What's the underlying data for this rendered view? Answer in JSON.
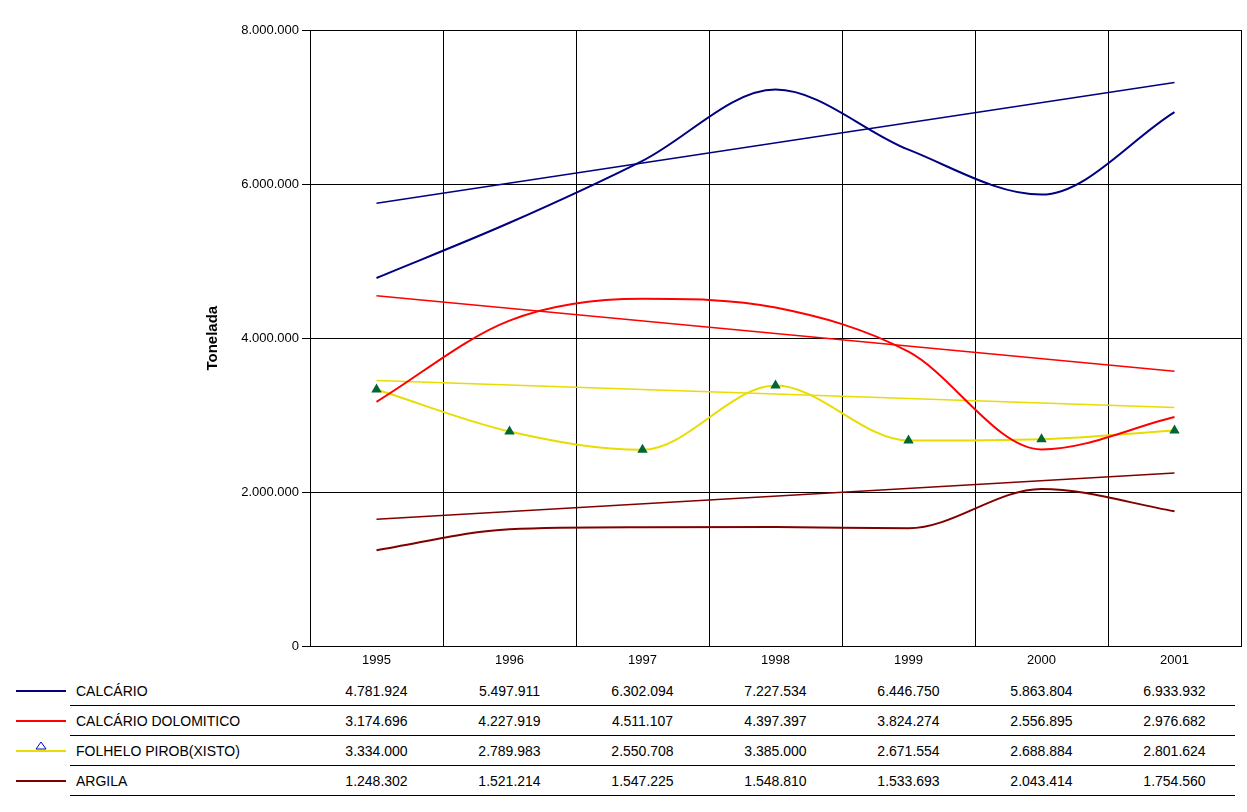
{
  "chart_data": {
    "type": "line",
    "ylabel": "Tonelada",
    "categories": [
      "1995",
      "1996",
      "1997",
      "1998",
      "1999",
      "2000",
      "2001"
    ],
    "ylim": [
      0,
      8000000
    ],
    "yticks": [
      0,
      {
        "value": 2000000,
        "label": "2.000.000"
      },
      {
        "value": 4000000,
        "label": "4.000.000"
      },
      {
        "value": 6000000,
        "label": "6.000.000"
      },
      {
        "value": 8000000,
        "label": "8.000.000"
      }
    ],
    "grid": true,
    "series": [
      {
        "name": "CALCÁRIO",
        "color": "#000080",
        "values": [
          4781924,
          5497911,
          6302094,
          7227534,
          6446750,
          5863804,
          6933932
        ],
        "value_labels": [
          "4.781.924",
          "5.497.911",
          "6.302.094",
          "7.227.534",
          "6.446.750",
          "5.863.804",
          "6.933.932"
        ],
        "trend": [
          5750000,
          7320000
        ]
      },
      {
        "name": "CALCÁRIO DOLOMITICO",
        "color": "#ff0000",
        "values": [
          3174696,
          4227919,
          4511107,
          4397397,
          3824274,
          2556895,
          2976682
        ],
        "value_labels": [
          "3.174.696",
          "4.227.919",
          "4.511.107",
          "4.397.397",
          "3.824.274",
          "2.556.895",
          "2.976.682"
        ],
        "trend": [
          4550000,
          3570000
        ]
      },
      {
        "name": "FOLHELO PIROB(XISTO)",
        "color": "#e8dc00",
        "marker": "triangle",
        "values": [
          3334000,
          2789983,
          2550708,
          3385000,
          2671554,
          2688884,
          2801624
        ],
        "value_labels": [
          "3.334.000",
          "2.789.983",
          "2.550.708",
          "3.385.000",
          "2.671.554",
          "2.688.884",
          "2.801.624"
        ],
        "trend": [
          3450000,
          3100000
        ]
      },
      {
        "name": "ARGILA",
        "color": "#800000",
        "values": [
          1248302,
          1521214,
          1547225,
          1548810,
          1533693,
          2043414,
          1754560
        ],
        "value_labels": [
          "1.248.302",
          "1.521.214",
          "1.547.225",
          "1.548.810",
          "1.533.693",
          "2.043.414",
          "1.754.560"
        ],
        "trend": [
          1650000,
          2250000
        ]
      }
    ]
  }
}
